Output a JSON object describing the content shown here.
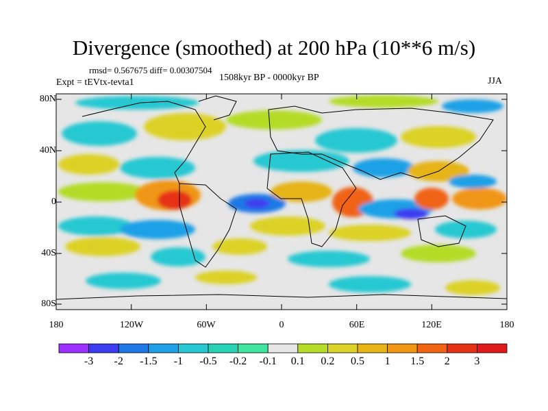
{
  "title": "Divergence (smoothed) at 200 hPa (10**6 m/s)",
  "stats": "rmsd= 0.567675 diff= 0.00307504",
  "period": "1508kyr BP - 0000kyr BP",
  "experiment": "Expt = tEVtx-tevta1",
  "season": "JJA",
  "lat_labels": [
    "80N",
    "40N",
    "0",
    "40S",
    "80S"
  ],
  "lon_labels": [
    "180",
    "120W",
    "60W",
    "0",
    "60E",
    "120E",
    "180"
  ],
  "colorbar": {
    "labels": [
      "-3",
      "-2",
      "-1.5",
      "-1",
      "-0.5",
      "-0.2",
      "-0.1",
      "0.1",
      "0.2",
      "0.5",
      "1",
      "1.5",
      "2",
      "3"
    ],
    "colors": [
      "#9b30ff",
      "#3c3cf0",
      "#1e78e6",
      "#1ea0e6",
      "#28c8d2",
      "#2ad2b4",
      "#40e6a0",
      "#e6e6e6",
      "#b4dc28",
      "#dcd228",
      "#e6b414",
      "#f09614",
      "#f06414",
      "#e63214",
      "#e01a1a"
    ]
  }
}
